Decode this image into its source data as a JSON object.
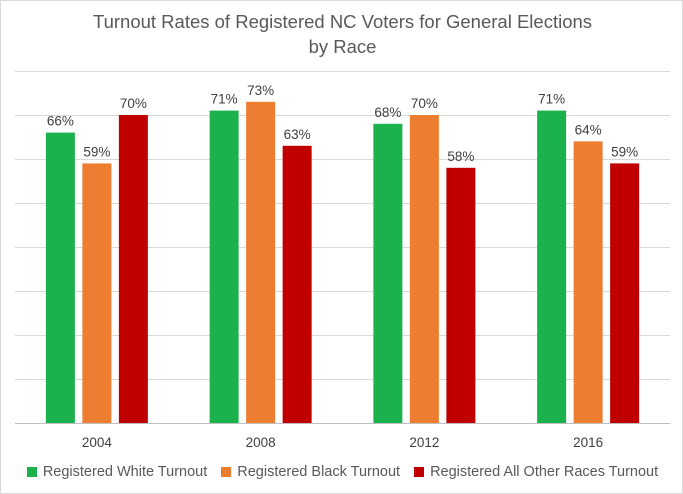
{
  "chart_data": {
    "type": "bar",
    "title": "Turnout Rates of Registered NC Voters for General Elections",
    "subtitle": "by Race",
    "categories": [
      "2004",
      "2008",
      "2012",
      "2016"
    ],
    "series": [
      {
        "name": "Registered White Turnout",
        "color": "#1bb14c",
        "values": [
          66,
          71,
          68,
          71
        ],
        "labels": [
          "66%",
          "71%",
          "68%",
          "71%"
        ]
      },
      {
        "name": "Registered Black Turnout",
        "color": "#ed7d31",
        "values": [
          59,
          73,
          70,
          64
        ],
        "labels": [
          "59%",
          "73%",
          "70%",
          "64%"
        ]
      },
      {
        "name": "Registered All Other Races Turnout",
        "color": "#c00000",
        "values": [
          70,
          63,
          58,
          59
        ],
        "labels": [
          "70%",
          "63%",
          "58%",
          "59%"
        ]
      }
    ],
    "ylim": [
      0,
      80
    ],
    "ytick_step": 10,
    "grid": true,
    "y_axis_labels_shown": false,
    "legend_position": "bottom"
  }
}
